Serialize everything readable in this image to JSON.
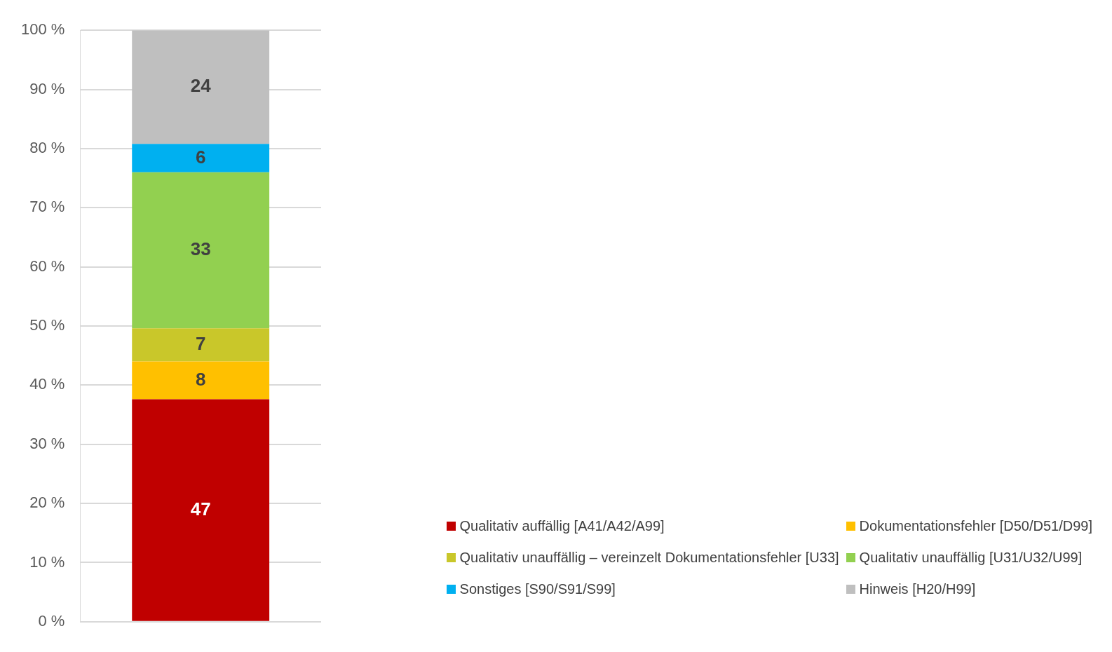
{
  "chart_data": {
    "type": "bar",
    "stacked": true,
    "categories": [
      null
    ],
    "series": [
      {
        "name": "Qualitativ auffällig [A41/A42/A99]",
        "color": "#c00000",
        "values": [
          37.6
        ]
      },
      {
        "name": "Dokumentationsfehler [D50/D51/D99]",
        "color": "#ffc000",
        "values": [
          6.4
        ]
      },
      {
        "name": "Qualitativ unauffällig – vereinzelt Dokumentationsfehler [U33]",
        "color": "#c9c72a",
        "values": [
          5.6
        ]
      },
      {
        "name": "Qualitativ unauffällig [U31/U32/U99]",
        "color": "#92d050",
        "values": [
          26.4
        ]
      },
      {
        "name": "Sonstiges [S90/S91/S99]",
        "color": "#00b0f0",
        "values": [
          4.8
        ]
      },
      {
        "name": "Hinweis [H20/H99]",
        "color": "#bfbfbf",
        "values": [
          19.2
        ]
      }
    ],
    "annotations": [
      "47",
      "8",
      "7",
      "33",
      "6",
      "24"
    ],
    "ylim": [
      0,
      100
    ],
    "yticks": [
      {
        "value": 0,
        "label": "0 %"
      },
      {
        "value": 10,
        "label": "10 %"
      },
      {
        "value": 20,
        "label": "20 %"
      },
      {
        "value": 30,
        "label": "30 %"
      },
      {
        "value": 40,
        "label": "40 %"
      },
      {
        "value": 50,
        "label": "50 %"
      },
      {
        "value": 60,
        "label": "60 %"
      },
      {
        "value": 70,
        "label": "70 %"
      },
      {
        "value": 80,
        "label": "80 %"
      },
      {
        "value": 90,
        "label": "90 %"
      },
      {
        "value": 100,
        "label": "100 %"
      }
    ],
    "grid": "y",
    "tick_labels": "y",
    "legend": "bottom right"
  }
}
